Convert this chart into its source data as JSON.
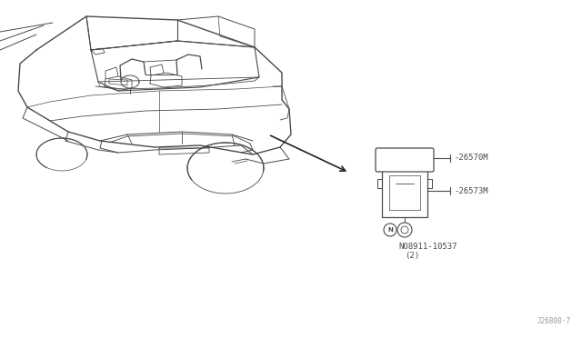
{
  "bg_color": "#ffffff",
  "line_color": "#4a4a4a",
  "text_color": "#4a4a4a",
  "part_label_26570M": "-26570M",
  "part_label_26573M": "-26573M",
  "part_label_bolt": "N08911-10537",
  "part_label_bolt_qty": "(2)",
  "watermark": "J26800·7",
  "font_size": 6.5,
  "watermark_font_size": 5.5
}
